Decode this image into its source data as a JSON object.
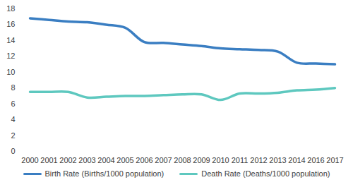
{
  "chart_data": {
    "type": "line",
    "categories": [
      "2000",
      "2001",
      "2002",
      "2003",
      "2004",
      "2005",
      "2006",
      "2007",
      "2008",
      "2009",
      "2010",
      "2011",
      "2012",
      "2013",
      "2014",
      "2016",
      "2017"
    ],
    "series": [
      {
        "name": "Birth Rate (Births/1000 population)",
        "color": "#3a7ec2",
        "values": [
          16.8,
          16.6,
          16.4,
          16.3,
          16.0,
          15.6,
          13.8,
          13.7,
          13.5,
          13.3,
          13.0,
          12.9,
          12.8,
          12.6,
          11.2,
          11.1,
          11.0
        ]
      },
      {
        "name": "Death Rate (Deaths/1000 population)",
        "color": "#5ec8bf",
        "values": [
          7.5,
          7.5,
          7.5,
          6.8,
          6.9,
          7.0,
          7.0,
          7.1,
          7.2,
          7.2,
          6.5,
          7.3,
          7.3,
          7.4,
          7.7,
          7.8,
          8.0
        ]
      }
    ],
    "ylim": [
      0,
      18
    ],
    "yticks": [
      0,
      2,
      4,
      6,
      8,
      10,
      12,
      14,
      16,
      18
    ],
    "grid": false,
    "legend": "bottom"
  }
}
